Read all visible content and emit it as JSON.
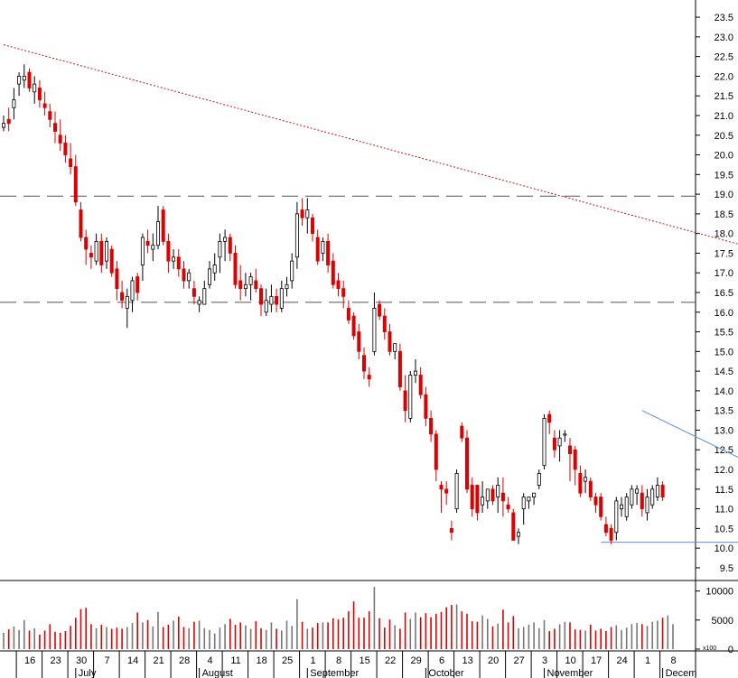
{
  "chart_data": [
    {
      "type": "candlestick",
      "title": "",
      "colors": {
        "up": "#ffffff",
        "down": "#dd0000",
        "outline": "#000000",
        "trend": "#d11111",
        "support": "#555555",
        "wedge": "#5b8fd8"
      },
      "price_axis": {
        "ylim": [
          9.2,
          23.8
        ],
        "ticks": [
          "9.5",
          "10.0",
          "10.5",
          "11.0",
          "11.5",
          "12.0",
          "12.5",
          "13.0",
          "13.5",
          "14.0",
          "14.5",
          "15.0",
          "15.5",
          "16.0",
          "16.5",
          "17.0",
          "17.5",
          "18.0",
          "18.5",
          "19.0",
          "19.5",
          "20.0",
          "20.5",
          "21.0",
          "21.5",
          "22.0",
          "22.5",
          "23.0",
          "23.5"
        ]
      },
      "reference_lines": [
        {
          "kind": "horizontal",
          "style": "dashed",
          "y": 18.95
        },
        {
          "kind": "horizontal",
          "style": "dashed",
          "y": 16.25
        },
        {
          "kind": "trendline",
          "style": "dotted",
          "from": [
            0,
            22.8
          ],
          "to": [
            152,
            17.4
          ]
        },
        {
          "kind": "trendline",
          "style": "solid",
          "from": [
            124,
            13.5
          ],
          "to": [
            153,
            11.65
          ]
        },
        {
          "kind": "trendline",
          "style": "solid",
          "from": [
            116,
            10.15
          ],
          "to": [
            153,
            10.15
          ]
        }
      ],
      "x_axis": {
        "date_labels": [
          "16",
          "23",
          "30",
          "7",
          "14",
          "21",
          "28",
          "4",
          "11",
          "18",
          "25",
          "1",
          "8",
          "15",
          "22",
          "29",
          "6",
          "13",
          "20",
          "27",
          "3",
          "10",
          "17",
          "24",
          "1",
          "8"
        ],
        "month_labels": [
          "July",
          "August",
          "September",
          "October",
          "November",
          "Decem"
        ]
      },
      "candles": [
        [
          20.7,
          21.0,
          20.6,
          20.8
        ],
        [
          20.9,
          21.2,
          20.6,
          20.8
        ],
        [
          21.2,
          21.7,
          20.9,
          21.4
        ],
        [
          21.8,
          22.1,
          21.5,
          22.0
        ],
        [
          21.9,
          22.3,
          21.7,
          22.0
        ],
        [
          22.1,
          22.2,
          21.6,
          21.7
        ],
        [
          21.6,
          22.0,
          21.3,
          21.8
        ],
        [
          21.7,
          21.9,
          21.2,
          21.4
        ],
        [
          21.3,
          21.6,
          21.0,
          21.2
        ],
        [
          21.1,
          21.3,
          20.7,
          20.9
        ],
        [
          20.8,
          21.1,
          20.3,
          20.6
        ],
        [
          20.5,
          20.9,
          20.1,
          20.3
        ],
        [
          20.3,
          20.5,
          19.8,
          20.0
        ],
        [
          19.9,
          20.3,
          19.5,
          19.7
        ],
        [
          19.7,
          20.0,
          18.7,
          18.8
        ],
        [
          18.6,
          18.8,
          17.8,
          17.9
        ],
        [
          17.9,
          18.1,
          17.2,
          17.6
        ],
        [
          17.5,
          17.7,
          17.1,
          17.4
        ],
        [
          17.3,
          18.0,
          17.2,
          17.8
        ],
        [
          17.8,
          18.0,
          17.0,
          17.2
        ],
        [
          17.3,
          17.9,
          17.1,
          17.8
        ],
        [
          17.6,
          17.7,
          16.9,
          17.0
        ],
        [
          17.1,
          17.3,
          16.3,
          16.6
        ],
        [
          16.5,
          16.8,
          16.1,
          16.3
        ],
        [
          16.1,
          16.6,
          15.6,
          16.4
        ],
        [
          16.3,
          16.9,
          16.0,
          16.8
        ],
        [
          16.9,
          17.0,
          16.3,
          16.5
        ],
        [
          17.2,
          18.0,
          16.8,
          17.9
        ],
        [
          17.8,
          18.1,
          17.5,
          17.7
        ],
        [
          17.6,
          18.0,
          17.3,
          17.7
        ],
        [
          17.7,
          18.7,
          17.6,
          18.3
        ],
        [
          18.6,
          18.7,
          17.7,
          17.8
        ],
        [
          17.8,
          18.0,
          17.0,
          17.3
        ],
        [
          17.3,
          17.6,
          17.1,
          17.4
        ],
        [
          17.4,
          17.6,
          16.9,
          17.1
        ],
        [
          17.1,
          17.3,
          16.6,
          16.8
        ],
        [
          16.8,
          17.1,
          16.6,
          17.0
        ],
        [
          16.6,
          16.8,
          16.2,
          16.4
        ],
        [
          16.2,
          16.4,
          16.0,
          16.3
        ],
        [
          16.2,
          16.8,
          16.2,
          16.6
        ],
        [
          16.7,
          17.3,
          16.6,
          17.1
        ],
        [
          17.0,
          17.5,
          16.8,
          17.2
        ],
        [
          17.4,
          18.0,
          17.0,
          17.8
        ],
        [
          17.8,
          18.1,
          17.3,
          17.9
        ],
        [
          17.9,
          18.0,
          17.3,
          17.5
        ],
        [
          17.5,
          17.7,
          16.6,
          16.7
        ],
        [
          16.8,
          17.2,
          16.3,
          16.6
        ],
        [
          16.6,
          17.0,
          16.4,
          16.7
        ],
        [
          16.7,
          17.0,
          16.3,
          16.9
        ],
        [
          16.8,
          17.1,
          16.5,
          16.6
        ],
        [
          16.6,
          16.7,
          15.9,
          16.2
        ],
        [
          16.0,
          16.6,
          15.9,
          16.3
        ],
        [
          16.2,
          16.7,
          16.0,
          16.4
        ],
        [
          16.4,
          16.6,
          16.0,
          16.2
        ],
        [
          16.1,
          16.8,
          16.0,
          16.6
        ],
        [
          16.6,
          16.9,
          16.4,
          16.7
        ],
        [
          16.8,
          17.5,
          16.6,
          17.3
        ],
        [
          17.4,
          18.8,
          17.1,
          18.5
        ],
        [
          18.6,
          18.9,
          18.2,
          18.4
        ],
        [
          18.4,
          18.9,
          18.0,
          18.6
        ],
        [
          18.4,
          18.5,
          17.8,
          18.0
        ],
        [
          17.9,
          18.1,
          17.2,
          17.3
        ],
        [
          17.5,
          17.9,
          17.3,
          17.8
        ],
        [
          17.8,
          18.0,
          17.0,
          17.2
        ],
        [
          17.3,
          17.5,
          16.6,
          16.7
        ],
        [
          16.8,
          17.0,
          16.4,
          16.6
        ],
        [
          16.6,
          16.8,
          16.1,
          16.4
        ],
        [
          16.1,
          16.3,
          15.7,
          15.8
        ],
        [
          15.9,
          16.0,
          15.3,
          15.4
        ],
        [
          15.5,
          15.7,
          14.8,
          15.0
        ],
        [
          14.9,
          15.1,
          14.3,
          14.5
        ],
        [
          14.4,
          14.6,
          14.1,
          14.3
        ],
        [
          15.0,
          16.5,
          14.9,
          16.1
        ],
        [
          16.2,
          16.3,
          15.8,
          15.9
        ],
        [
          15.9,
          16.1,
          15.3,
          15.5
        ],
        [
          15.5,
          15.7,
          14.9,
          15.0
        ],
        [
          15.0,
          15.2,
          14.8,
          15.2
        ],
        [
          15.0,
          15.2,
          14.0,
          14.1
        ],
        [
          14.0,
          14.4,
          13.2,
          13.5
        ],
        [
          13.3,
          14.5,
          13.2,
          14.4
        ],
        [
          14.4,
          14.8,
          14.2,
          14.5
        ],
        [
          14.4,
          14.6,
          13.8,
          13.9
        ],
        [
          13.9,
          14.1,
          13.1,
          13.3
        ],
        [
          13.3,
          13.5,
          12.7,
          12.9
        ],
        [
          12.9,
          13.0,
          11.7,
          12.0
        ],
        [
          11.6,
          11.7,
          10.9,
          11.5
        ],
        [
          11.5,
          11.7,
          11.1,
          11.4
        ],
        [
          10.5,
          10.7,
          10.2,
          10.4
        ],
        [
          11.0,
          12.0,
          10.9,
          11.9
        ],
        [
          13.1,
          13.2,
          12.7,
          12.8
        ],
        [
          12.8,
          13.0,
          11.4,
          11.5
        ],
        [
          11.6,
          11.8,
          10.8,
          11.0
        ],
        [
          11.6,
          11.6,
          10.7,
          10.9
        ],
        [
          11.1,
          11.7,
          10.9,
          11.3
        ],
        [
          11.2,
          11.5,
          11.0,
          11.5
        ],
        [
          11.5,
          11.6,
          11.1,
          11.2
        ],
        [
          11.3,
          11.8,
          10.9,
          11.6
        ],
        [
          11.4,
          11.8,
          10.8,
          11.2
        ],
        [
          11.1,
          11.3,
          10.9,
          11.0
        ],
        [
          10.9,
          11.0,
          10.2,
          10.2
        ],
        [
          10.3,
          10.5,
          10.1,
          10.4
        ],
        [
          11.0,
          11.4,
          10.6,
          11.3
        ],
        [
          11.2,
          11.3,
          11.0,
          11.3
        ],
        [
          11.3,
          11.4,
          11.1,
          11.4
        ],
        [
          11.6,
          12.0,
          11.5,
          11.9
        ],
        [
          12.1,
          13.4,
          12.0,
          13.3
        ],
        [
          13.4,
          13.5,
          12.9,
          13.2
        ],
        [
          12.8,
          13.0,
          12.3,
          12.5
        ],
        [
          12.6,
          13.0,
          12.2,
          12.8
        ],
        [
          12.9,
          13.0,
          12.7,
          12.9
        ],
        [
          12.6,
          12.8,
          11.7,
          12.4
        ],
        [
          12.5,
          12.6,
          11.6,
          12.0
        ],
        [
          11.9,
          12.1,
          11.3,
          11.4
        ],
        [
          11.7,
          12.0,
          11.4,
          11.8
        ],
        [
          11.7,
          11.8,
          11.2,
          11.3
        ],
        [
          11.3,
          11.4,
          10.9,
          11.1
        ],
        [
          11.3,
          11.4,
          10.7,
          10.8
        ],
        [
          10.6,
          10.8,
          10.3,
          10.4
        ],
        [
          10.5,
          10.6,
          10.1,
          10.2
        ],
        [
          10.4,
          11.3,
          10.2,
          11.2
        ],
        [
          11.0,
          11.3,
          10.8,
          11.1
        ],
        [
          10.8,
          11.4,
          10.7,
          11.3
        ],
        [
          11.1,
          11.6,
          11.0,
          11.5
        ],
        [
          11.4,
          11.6,
          11.1,
          11.5
        ],
        [
          11.4,
          11.6,
          10.8,
          11.0
        ],
        [
          10.9,
          11.5,
          10.7,
          11.3
        ],
        [
          11.1,
          11.6,
          11.0,
          11.5
        ],
        [
          11.3,
          11.8,
          11.2,
          11.6
        ],
        [
          11.6,
          11.7,
          11.2,
          11.3
        ]
      ],
      "volume_axis": {
        "ylim": [
          0,
          11500
        ],
        "ticks": [
          "0",
          "5000",
          "10000"
        ],
        "unit_label": "x100"
      },
      "volume": [
        2800,
        3400,
        3900,
        3300,
        5000,
        3200,
        3600,
        2500,
        3200,
        4300,
        3000,
        2800,
        3100,
        4000,
        5400,
        6900,
        7100,
        4300,
        3600,
        4200,
        3800,
        3500,
        3700,
        3500,
        3800,
        4500,
        6300,
        4600,
        5000,
        3900,
        6400,
        3800,
        4200,
        4900,
        5600,
        3800,
        3600,
        4700,
        4900,
        3600,
        3300,
        2700,
        3700,
        4300,
        5200,
        4200,
        4600,
        4100,
        3500,
        4800,
        3600,
        3300,
        4600,
        3500,
        3200,
        4900,
        4000,
        8600,
        4700,
        3500,
        3700,
        4500,
        4600,
        4600,
        5300,
        5100,
        5400,
        6500,
        8200,
        5400,
        5400,
        6500,
        10700,
        5300,
        3700,
        5100,
        4100,
        3500,
        6300,
        5200,
        6300,
        5500,
        6200,
        5500,
        6100,
        6400,
        7200,
        7600,
        7700,
        6500,
        6100,
        4800,
        4700,
        5800,
        5200,
        3900,
        4400,
        6800,
        4600,
        5700,
        3600,
        3800,
        4200,
        4600,
        3600,
        5000,
        3100,
        3500,
        4300,
        4700,
        4600,
        3400,
        3300,
        3200,
        4200,
        3200,
        3500,
        3100,
        3800,
        4100,
        3300,
        3700,
        4300,
        4500,
        4300,
        4000,
        4700,
        4900,
        5400,
        5800,
        4300
      ]
    }
  ]
}
